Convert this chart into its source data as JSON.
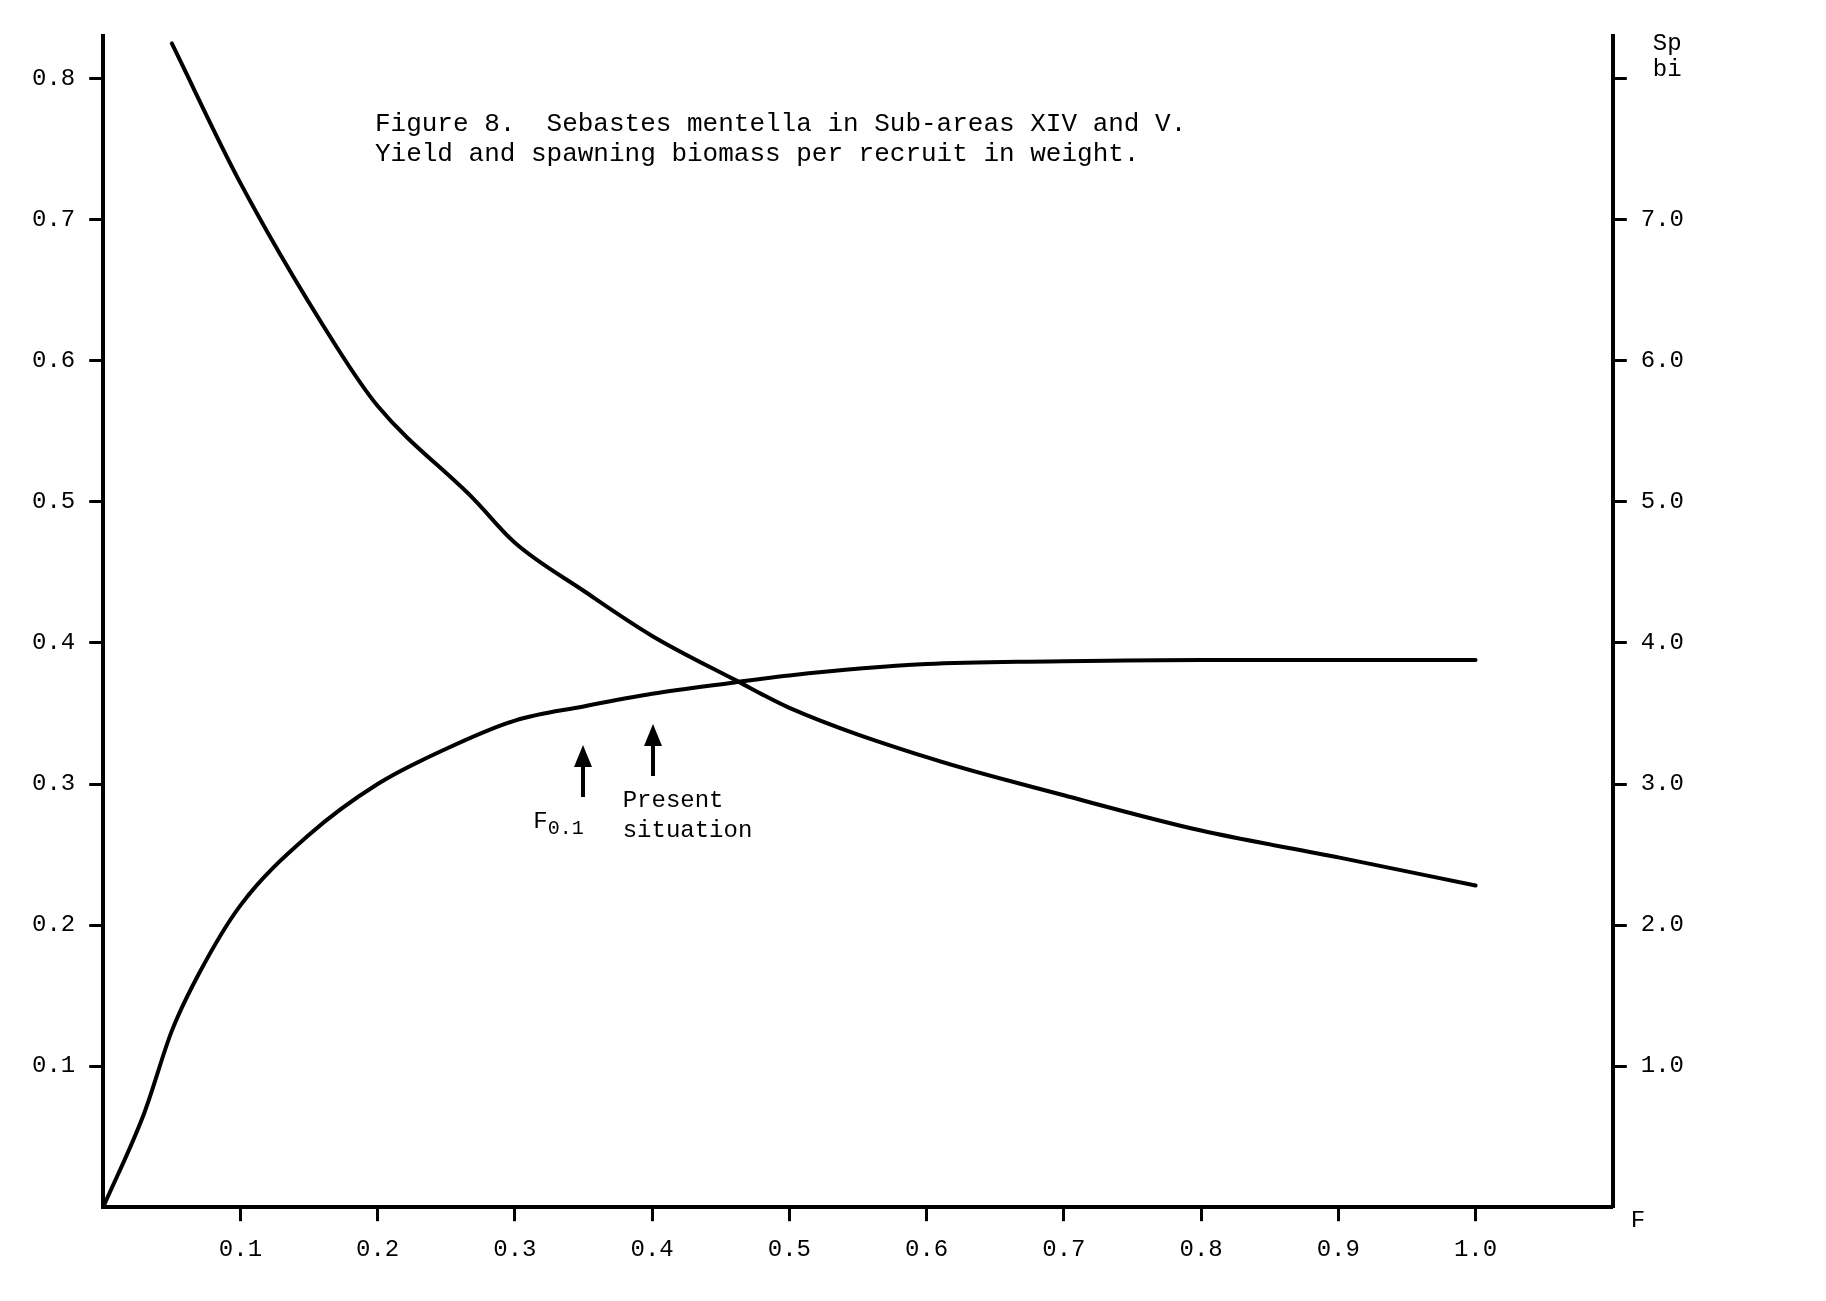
{
  "chart_data": {
    "type": "line",
    "title": "Figure 8.  Sebastes mentella in Sub-areas XIV and V.",
    "subtitle": "Yield and spawning biomass per recruit in weight.",
    "xlabel": "F",
    "y2label": "Sp\nbi",
    "xlim": [
      0,
      1.1
    ],
    "xticks": [
      0.1,
      0.2,
      0.3,
      0.4,
      0.5,
      0.6,
      0.7,
      0.8,
      0.9,
      {
        "value": 1,
        "label": "1.0"
      }
    ],
    "ylim": [
      0,
      0.83
    ],
    "yticks": [
      0.1,
      0.2,
      0.3,
      0.4,
      0.5,
      0.6,
      0.7,
      0.8
    ],
    "y2lim": [
      0,
      8.3
    ],
    "y2ticks": [
      {
        "value": 1,
        "label": "1.0"
      },
      {
        "value": 2,
        "label": "2.0"
      },
      {
        "value": 3,
        "label": "3.0"
      },
      {
        "value": 4,
        "label": "4.0"
      },
      {
        "value": 5,
        "label": "5.0"
      },
      {
        "value": 6,
        "label": "6.0"
      },
      {
        "value": 7,
        "label": "7.0"
      },
      {
        "value": 8,
        "label": null
      }
    ],
    "grid": false,
    "legend": false,
    "marker": "none",
    "line_style": "solid",
    "series": [
      {
        "color": "#000000",
        "x": [
          0,
          0.03,
          0.05,
          0.07,
          0.1,
          0.15,
          0.2,
          0.25,
          0.3,
          0.35,
          0.4,
          0.46,
          0.5,
          0.6,
          0.7,
          0.8,
          0.9,
          1.0
        ],
        "values": [
          0,
          0.067,
          0.125,
          0.166,
          0.214,
          0.264,
          0.3,
          0.325,
          0.345,
          0.355,
          0.364,
          0.372,
          0.377,
          0.385,
          0.387,
          0.388,
          0.388,
          0.388
        ]
      },
      {
        "color": "#000000",
        "axis": "y2",
        "x": [
          0.05,
          0.1,
          0.17,
          0.2,
          0.27,
          0.3,
          0.35,
          0.4,
          0.46,
          0.5,
          0.6,
          0.7,
          0.8,
          0.9,
          1.0
        ],
        "values": [
          8.25,
          7.26,
          6.1,
          5.68,
          5.02,
          4.71,
          4.37,
          4.05,
          3.74,
          3.54,
          3.19,
          2.92,
          2.67,
          2.48,
          2.28
        ]
      }
    ],
    "annotations": [
      "F$_{0.1}$",
      "Present\nsituation"
    ]
  }
}
